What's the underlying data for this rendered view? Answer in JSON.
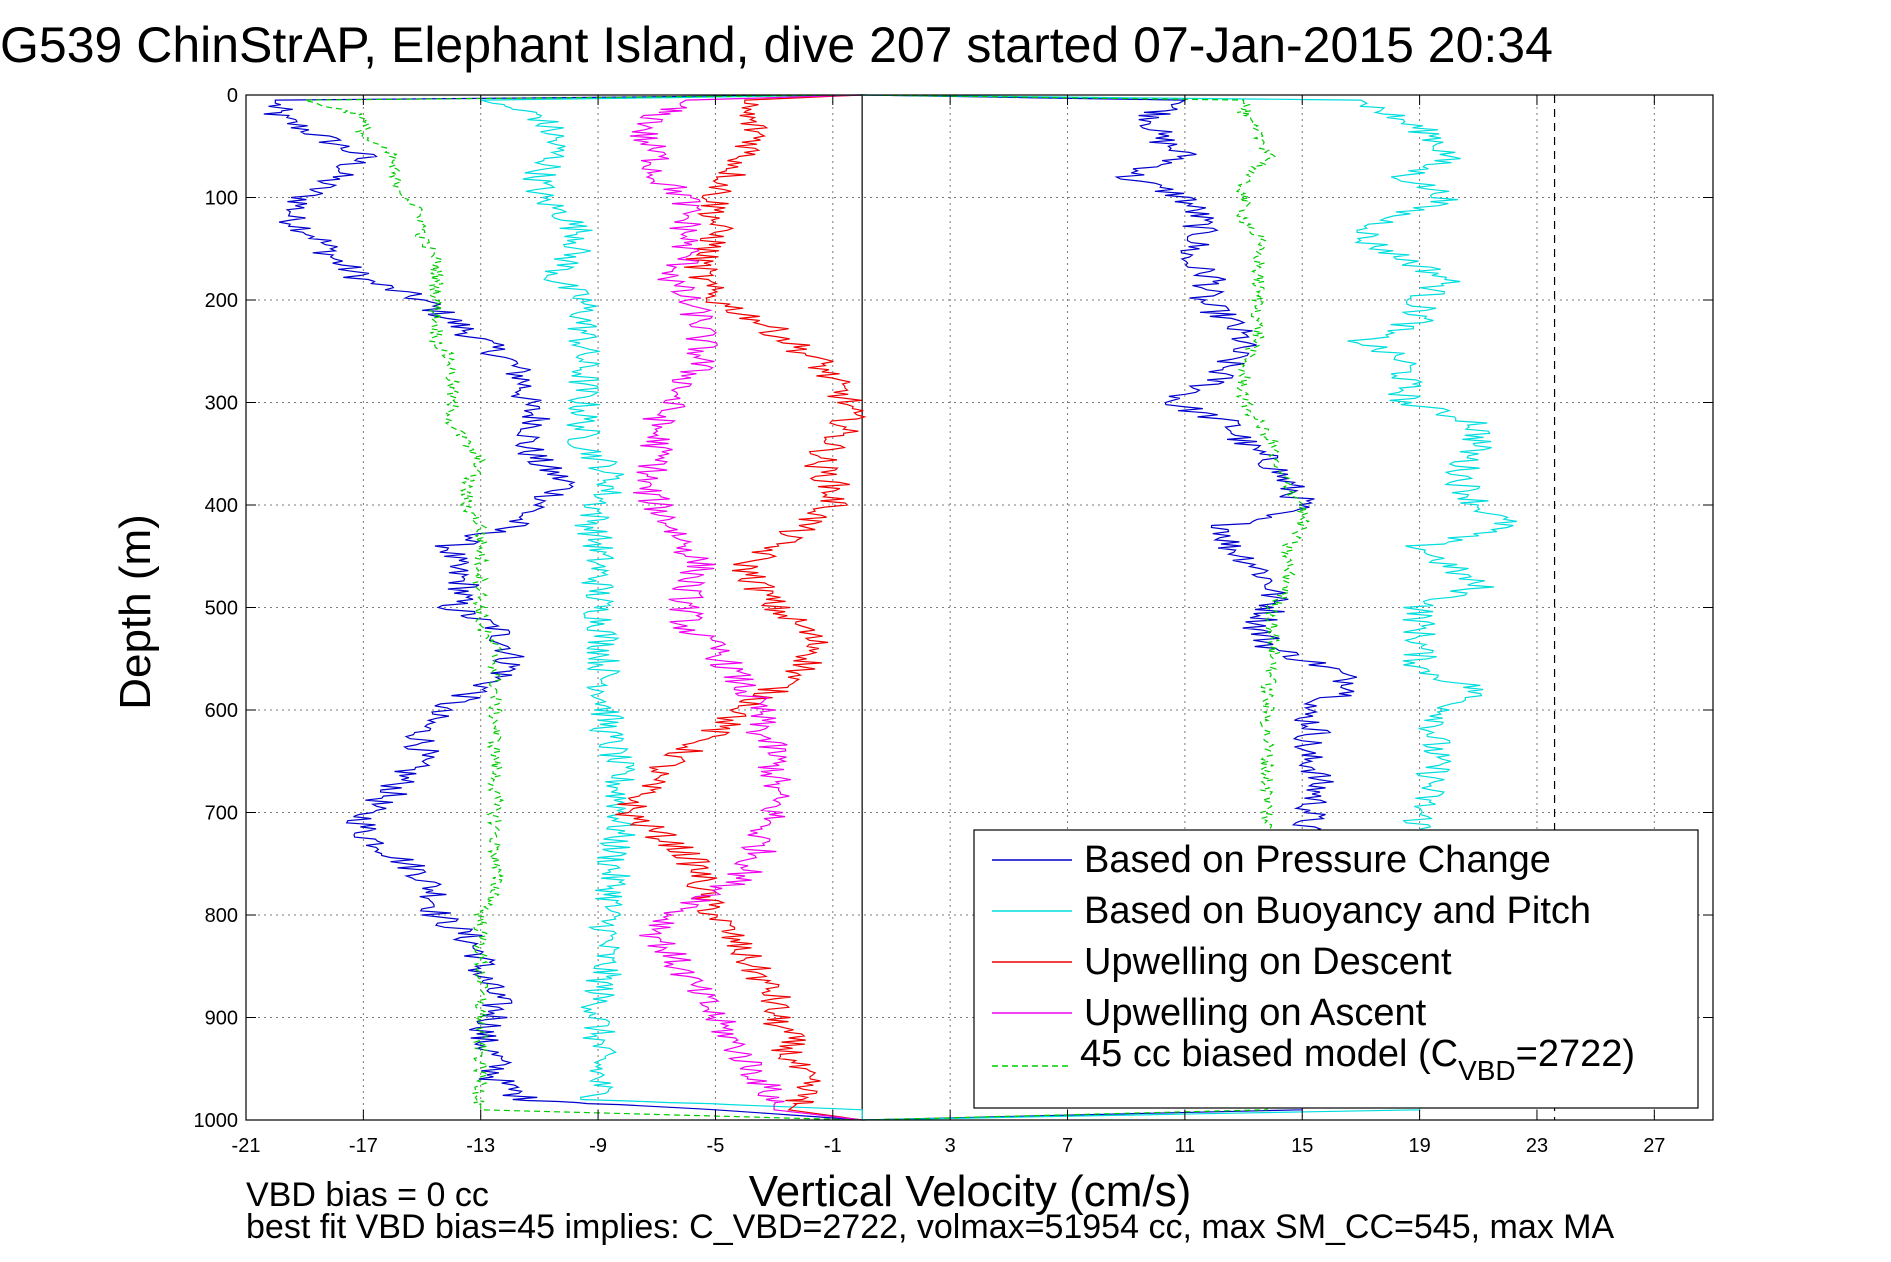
{
  "chart_data": {
    "type": "line",
    "title": "G539 ChinStrAP, Elephant Island, dive 207 started 07-Jan-2015 20:34",
    "xlabel": "Vertical Velocity (cm/s)",
    "ylabel": "Depth (m)",
    "xlim": [
      -21,
      29
    ],
    "ylim": [
      0,
      1000
    ],
    "y_reversed": true,
    "grid": true,
    "x_ticks": [
      "-21",
      "-17",
      "-13",
      "-9",
      "-5",
      "-1",
      "3",
      "7",
      "11",
      "15",
      "19",
      "23",
      "27"
    ],
    "x_tick_values": [
      -21,
      -17,
      -13,
      -9,
      -5,
      -1,
      3,
      7,
      11,
      15,
      19,
      23,
      27
    ],
    "y_ticks": [
      "0",
      "100",
      "200",
      "300",
      "400",
      "500",
      "600",
      "700",
      "800",
      "900",
      "1000"
    ],
    "y_tick_values": [
      0,
      100,
      200,
      300,
      400,
      500,
      600,
      700,
      800,
      900,
      1000
    ],
    "reference_lines": [
      {
        "x": 0,
        "style": "solid",
        "color": "#000000"
      },
      {
        "x": 23.6,
        "style": "dashed",
        "color": "#000000"
      }
    ],
    "legend_position": "bottom-right",
    "depth": [
      0,
      5,
      20,
      40,
      60,
      80,
      100,
      120,
      140,
      160,
      180,
      200,
      220,
      240,
      260,
      280,
      300,
      320,
      340,
      360,
      380,
      400,
      420,
      440,
      460,
      480,
      500,
      520,
      540,
      560,
      580,
      600,
      620,
      640,
      660,
      680,
      700,
      720,
      740,
      760,
      780,
      800,
      820,
      840,
      860,
      880,
      900,
      920,
      940,
      960,
      980,
      990,
      1000
    ],
    "series": [
      {
        "name": "Based on Pressure Change",
        "color": "#0000cc",
        "style": "solid",
        "values": [
          0,
          -20,
          -20,
          -18.5,
          -17,
          -18,
          -19,
          -19.5,
          -18.5,
          -18,
          -17,
          -15,
          -14,
          -13,
          -12,
          -11.5,
          -11.5,
          -11,
          -11.5,
          -11,
          -10,
          -11,
          -12,
          -14,
          -14,
          -13.5,
          -14,
          -12.5,
          -12,
          -12,
          -13,
          -14.5,
          -15,
          -15,
          -15.5,
          -16,
          -17,
          -17,
          -16,
          -15,
          -14.5,
          -14.5,
          -13.5,
          -13,
          -13,
          -12.5,
          -12.5,
          -13,
          -12.5,
          -12.5,
          -11.5,
          -5,
          0
        ],
        "ascent_values": [
          0,
          11,
          10,
          10,
          11,
          9,
          11,
          11.5,
          11.5,
          11,
          12,
          11.5,
          12.5,
          13,
          12.5,
          12,
          10.5,
          12.5,
          13,
          14,
          14.5,
          15,
          12.5,
          12.5,
          13.5,
          14,
          14,
          13.5,
          14,
          16,
          17,
          15,
          15.5,
          15,
          15.5,
          15.5,
          15.3,
          15,
          15,
          15,
          15,
          15,
          15,
          15,
          15,
          15,
          15,
          15,
          15,
          15,
          15,
          15,
          0
        ]
      },
      {
        "name": "Based on Buoyancy and Pitch",
        "color": "#00dddd",
        "style": "solid",
        "values": [
          0,
          -13,
          -11,
          -10.5,
          -10.5,
          -11,
          -11,
          -10,
          -9.5,
          -10,
          -10.5,
          -9.5,
          -9.5,
          -9.5,
          -9.5,
          -9.5,
          -9.5,
          -9.5,
          -9.5,
          -8.8,
          -8.5,
          -9,
          -9.2,
          -9,
          -9,
          -9,
          -9,
          -8.8,
          -8.8,
          -8.8,
          -8.8,
          -8.7,
          -8.7,
          -8.5,
          -8.3,
          -8.3,
          -8.2,
          -8.3,
          -8.5,
          -8.5,
          -8.5,
          -8.7,
          -8.7,
          -8.8,
          -8.8,
          -9,
          -9,
          -9,
          -9,
          -9,
          -9,
          0,
          0
        ],
        "ascent_values": [
          0,
          17,
          18,
          19.5,
          20,
          18.5,
          20,
          18,
          17,
          18.5,
          20,
          19,
          19,
          17,
          18.5,
          18.5,
          18.5,
          21,
          21,
          20.5,
          20.5,
          21,
          22,
          19,
          20,
          21,
          19,
          19,
          19,
          19,
          21,
          20,
          19.5,
          19.5,
          19.5,
          19.3,
          19,
          19,
          19,
          19,
          19,
          19,
          19,
          19,
          19,
          19,
          19,
          19,
          19,
          19,
          19,
          19,
          0
        ]
      },
      {
        "name": "Upwelling on Descent",
        "color": "#ee0000",
        "style": "solid",
        "values": [
          0,
          -4,
          -4,
          -3.5,
          -4,
          -4.5,
          -5,
          -5,
          -5,
          -5.5,
          -5.5,
          -5,
          -3.5,
          -2.5,
          -1.5,
          -1,
          -0.5,
          -0.5,
          -1,
          -1.5,
          -1,
          -1,
          -2,
          -3,
          -4,
          -3.5,
          -3,
          -2,
          -1.5,
          -2,
          -3,
          -4,
          -5,
          -6,
          -7,
          -7.5,
          -8,
          -7,
          -6,
          -5.5,
          -5.5,
          -5,
          -4.5,
          -4,
          -3.5,
          -3,
          -3,
          -2.5,
          -2.5,
          -2,
          -2,
          -2.5,
          0
        ]
      },
      {
        "name": "Upwelling on Ascent",
        "color": "#ee00ee",
        "style": "solid",
        "values": [
          0,
          -6,
          -7,
          -7.5,
          -7,
          -7,
          -6,
          -6,
          -6,
          -6,
          -6.5,
          -6,
          -5.5,
          -5.5,
          -5.5,
          -6,
          -6.5,
          -7,
          -7,
          -7,
          -7.5,
          -7,
          -6.5,
          -6,
          -5.5,
          -6,
          -6,
          -6,
          -5,
          -4.5,
          -4,
          -3.5,
          -3.5,
          -3,
          -3,
          -3,
          -3,
          -3.5,
          -3.5,
          -4,
          -5,
          -6.5,
          -7,
          -6.5,
          -6,
          -5.5,
          -5,
          -4.5,
          -4,
          -3.5,
          -3,
          -3,
          0
        ]
      },
      {
        "name": "45 cc biased model (C_VBD=2722)",
        "color": "#00cc00",
        "style": "dashed",
        "values": [
          0,
          -19,
          -17,
          -17,
          -16,
          -16,
          -15.5,
          -15,
          -15,
          -14.5,
          -14.5,
          -14.5,
          -14.5,
          -14.5,
          -14,
          -14,
          -14,
          -14,
          -13.5,
          -13,
          -13.5,
          -13.5,
          -13,
          -13,
          -13,
          -13,
          -13,
          -13,
          -12.5,
          -12.5,
          -12.5,
          -12.5,
          -12.5,
          -12.5,
          -12.5,
          -12.5,
          -12.5,
          -12.5,
          -12.5,
          -12.5,
          -12.5,
          -13,
          -13,
          -13,
          -13,
          -13,
          -13,
          -13,
          -13,
          -13,
          -13,
          -13,
          0
        ],
        "ascent_values": [
          0,
          13,
          13,
          13.5,
          14,
          13,
          13,
          13,
          13.5,
          13.5,
          13.5,
          13.5,
          13.5,
          13.5,
          13,
          13,
          13,
          13.5,
          14,
          14,
          14.5,
          15,
          15,
          14.5,
          14.5,
          14.5,
          14,
          14,
          14,
          14,
          13.8,
          13.8,
          13.8,
          13.8,
          13.8,
          13.8,
          13.8,
          13.8,
          13.8,
          13.8,
          13.8,
          13.8,
          13.8,
          13.8,
          13.8,
          13.8,
          13.8,
          13.8,
          13.8,
          13.8,
          13.8,
          13.8,
          0
        ]
      }
    ]
  },
  "legend": {
    "items": [
      {
        "label": "Based on Pressure Change",
        "color": "#0000cc",
        "dashed": false
      },
      {
        "label": "Based on Buoyancy and Pitch",
        "color": "#00dddd",
        "dashed": false
      },
      {
        "label": "Upwelling on Descent",
        "color": "#ee0000",
        "dashed": false
      },
      {
        "label": "Upwelling on Ascent",
        "color": "#ee00ee",
        "dashed": false
      }
    ],
    "model_label_main": "45 cc biased model (C",
    "model_label_sub": "VBD",
    "model_label_tail": "=2722)",
    "model_color": "#00cc00"
  },
  "notes": {
    "line1": "VBD bias = 0 cc",
    "line2": "best fit VBD bias=45 implies: C_VBD=2722, volmax=51954 cc, max SM_CC=545, max MA"
  }
}
